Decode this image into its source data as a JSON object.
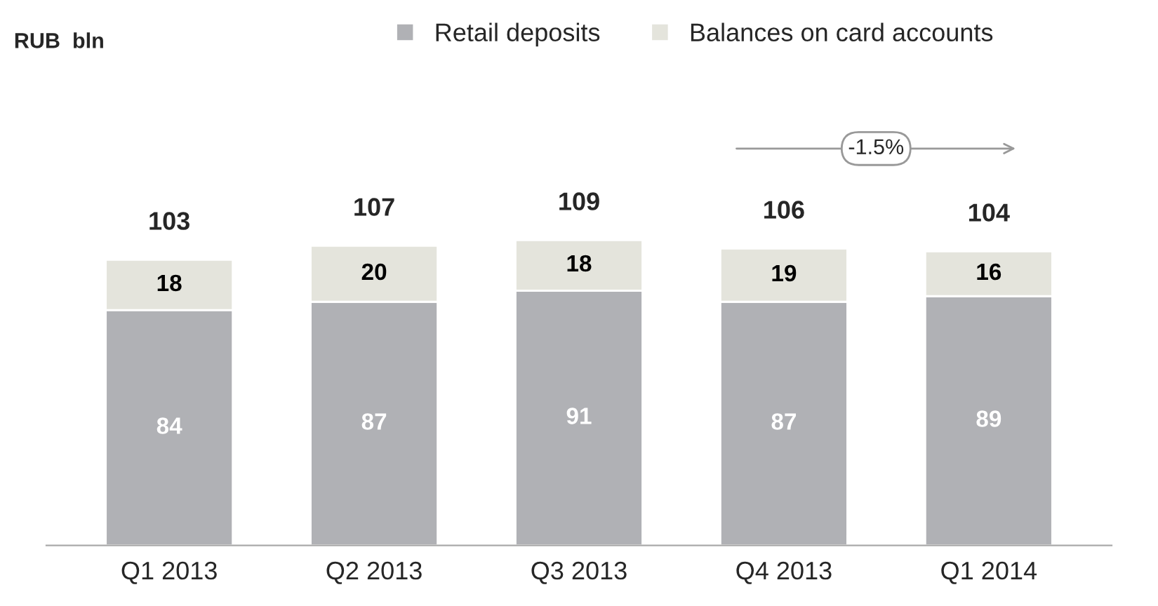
{
  "chart_data": {
    "type": "bar",
    "stacked": true,
    "title": "RUB  bln",
    "categories": [
      "Q1 2013",
      "Q2 2013",
      "Q3 2013",
      "Q4 2013",
      "Q1 2014"
    ],
    "series": [
      {
        "name": "Retail deposits",
        "color": "#b0b1b5",
        "values": [
          84,
          87,
          91,
          87,
          89
        ]
      },
      {
        "name": "Balances on card accounts",
        "color": "#e4e4dc",
        "values": [
          18,
          20,
          18,
          19,
          16
        ]
      }
    ],
    "data_labels": true,
    "totals": [
      "103",
      "107",
      "109",
      "106",
      "104"
    ],
    "annotations": [
      "-1.5%"
    ],
    "legend": "top",
    "grid": false
  }
}
